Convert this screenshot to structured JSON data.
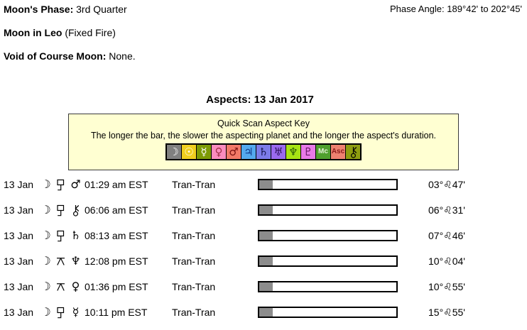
{
  "header": {
    "moon_phase_label": "Moon's Phase:",
    "moon_phase_value": "3rd Quarter",
    "phase_angle_label": "Phase Angle:",
    "phase_angle_value": "189°42' to 202°45'",
    "moon_sign_label": "Moon in Leo",
    "moon_sign_value": "(Fixed Fire)",
    "voc_label": "Void of Course Moon:",
    "voc_value": "None."
  },
  "aspects": {
    "title": "Aspects: 13 Jan 2017",
    "key": {
      "title": "Quick Scan Aspect Key",
      "subtitle": "The longer the bar, the slower the aspecting planet and the longer the aspect's duration.",
      "symbols": [
        {
          "name": "moon-icon",
          "glyph": "☽",
          "bg": "#808080",
          "fg": "#FFFFFF"
        },
        {
          "name": "sun-icon",
          "glyph": "☉",
          "bg": "#F0CF1E",
          "fg": "#FFFFFF"
        },
        {
          "name": "mercury-icon",
          "glyph": "☿",
          "bg": "#7D9B05",
          "fg": "#FFFFFF"
        },
        {
          "name": "venus-icon",
          "glyph": "♀",
          "bg": "#FB8CBE",
          "fg": "#A03048"
        },
        {
          "name": "mars-icon",
          "glyph": "♂",
          "bg": "#F27A68",
          "fg": "#7A1010"
        },
        {
          "name": "jupiter-icon",
          "glyph": "♃",
          "bg": "#54A9EE",
          "fg": "#123A8C"
        },
        {
          "name": "saturn-icon",
          "glyph": "♄",
          "bg": "#7C7CE8",
          "fg": "#14144A"
        },
        {
          "name": "uranus-icon",
          "glyph": "♅",
          "bg": "#9A6AEE",
          "fg": "#2A1058"
        },
        {
          "name": "neptune-icon",
          "glyph": "♆",
          "bg": "#A8E414",
          "fg": "#2A5A0A"
        },
        {
          "name": "pluto-icon",
          "glyph": "♇",
          "bg": "#E87AE8",
          "fg": "#5A1058"
        },
        {
          "name": "midheaven-icon",
          "glyph": "Mc",
          "bg": "#4FA02E",
          "fg": "#E6F2DA",
          "text": true
        },
        {
          "name": "ascendant-icon",
          "glyph": "Asc",
          "bg": "#EE8170",
          "fg": "#8A1A1A",
          "text": true
        },
        {
          "name": "chiron-icon",
          "glyph": "chiron",
          "bg": "#8E9E10",
          "fg": "#000000"
        }
      ]
    },
    "bar_color": "#8C8C8C",
    "rows": [
      {
        "date": "13 Jan",
        "p1_glyph": "☽",
        "p1_name": "moon-icon",
        "aspect": "sesquiquadrate",
        "p2_glyph": "♂",
        "p2_name": "mars-icon",
        "time": "01:29 am EST",
        "type": "Tran-Tran",
        "bar_percent": 10,
        "degree_deg": "03°",
        "degree_sign": "♌",
        "degree_min": "47'"
      },
      {
        "date": "13 Jan",
        "p1_glyph": "☽",
        "p1_name": "moon-icon",
        "aspect": "sesquiquadrate",
        "p2_glyph": "chiron",
        "p2_name": "chiron-icon",
        "time": "06:06 am EST",
        "type": "Tran-Tran",
        "bar_percent": 10,
        "degree_deg": "06°",
        "degree_sign": "♌",
        "degree_min": "31'"
      },
      {
        "date": "13 Jan",
        "p1_glyph": "☽",
        "p1_name": "moon-icon",
        "aspect": "sesquiquadrate",
        "p2_glyph": "♄",
        "p2_name": "saturn-icon",
        "time": "08:13 am EST",
        "type": "Tran-Tran",
        "bar_percent": 10,
        "degree_deg": "07°",
        "degree_sign": "♌",
        "degree_min": "46'"
      },
      {
        "date": "13 Jan",
        "p1_glyph": "☽",
        "p1_name": "moon-icon",
        "aspect": "quincunx",
        "p2_glyph": "♆",
        "p2_name": "neptune-icon",
        "time": "12:08 pm EST",
        "type": "Tran-Tran",
        "bar_percent": 10,
        "degree_deg": "10°",
        "degree_sign": "♌",
        "degree_min": "04'"
      },
      {
        "date": "13 Jan",
        "p1_glyph": "☽",
        "p1_name": "moon-icon",
        "aspect": "quincunx",
        "p2_glyph": "♀",
        "p2_name": "venus-icon",
        "time": "01:36 pm EST",
        "type": "Tran-Tran",
        "bar_percent": 10,
        "degree_deg": "10°",
        "degree_sign": "♌",
        "degree_min": "55'"
      },
      {
        "date": "13 Jan",
        "p1_glyph": "☽",
        "p1_name": "moon-icon",
        "aspect": "sesquiquadrate",
        "p2_glyph": "☿",
        "p2_name": "mercury-icon",
        "time": "10:11 pm EST",
        "type": "Tran-Tran",
        "bar_percent": 10,
        "degree_deg": "15°",
        "degree_sign": "♌",
        "degree_min": "55'"
      }
    ]
  }
}
